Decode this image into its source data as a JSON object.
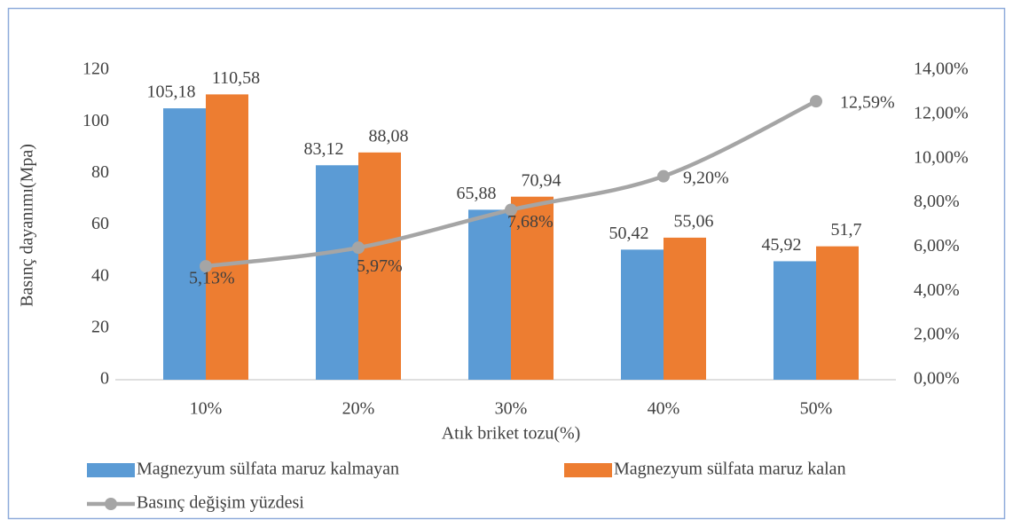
{
  "chart_data": {
    "type": "bar",
    "x_label": "Atık briket tozu(%)",
    "y_label": "Basınç dayanımı(Mpa)",
    "categories": [
      "10%",
      "20%",
      "30%",
      "40%",
      "50%"
    ],
    "series": [
      {
        "name": "Magnezyum sülfata maruz kalmayan",
        "color": "#5b9bd5",
        "type": "bar",
        "values": [
          105.18,
          83.12,
          65.88,
          50.42,
          45.92
        ],
        "value_labels": [
          "105,18",
          "83,12",
          "65,88",
          "50,42",
          "45,92"
        ]
      },
      {
        "name": "Magnezyum sülfata maruz kalan",
        "color": "#ed7d31",
        "type": "bar",
        "values": [
          110.58,
          88.08,
          70.94,
          55.06,
          51.7
        ],
        "value_labels": [
          "110,58",
          "88,08",
          "70,94",
          "55,06",
          "51,7"
        ]
      },
      {
        "name": "Basınç değişim yüzdesi",
        "color": "#a5a5a5",
        "type": "line",
        "axis": "y2",
        "values": [
          5.13,
          5.97,
          7.68,
          9.2,
          12.59
        ],
        "value_labels": [
          "5,13%",
          "5,97%",
          "7,68%",
          "9,20%",
          "12,59%"
        ]
      }
    ],
    "ylim": [
      0,
      120
    ],
    "yticks": [
      0,
      20,
      40,
      60,
      80,
      100,
      120
    ],
    "y2lim": [
      0,
      14
    ],
    "y2ticks": [
      {
        "value": 0,
        "label": "0,00%"
      },
      {
        "value": 2,
        "label": "2,00%"
      },
      {
        "value": 4,
        "label": "4,00%"
      },
      {
        "value": 6,
        "label": "6,00%"
      },
      {
        "value": 8,
        "label": "8,00%"
      },
      {
        "value": 10,
        "label": "10,00%"
      },
      {
        "value": 12,
        "label": "12,00%"
      },
      {
        "value": 14,
        "label": "14,00%"
      }
    ],
    "grid": false,
    "legend": "bottom"
  }
}
